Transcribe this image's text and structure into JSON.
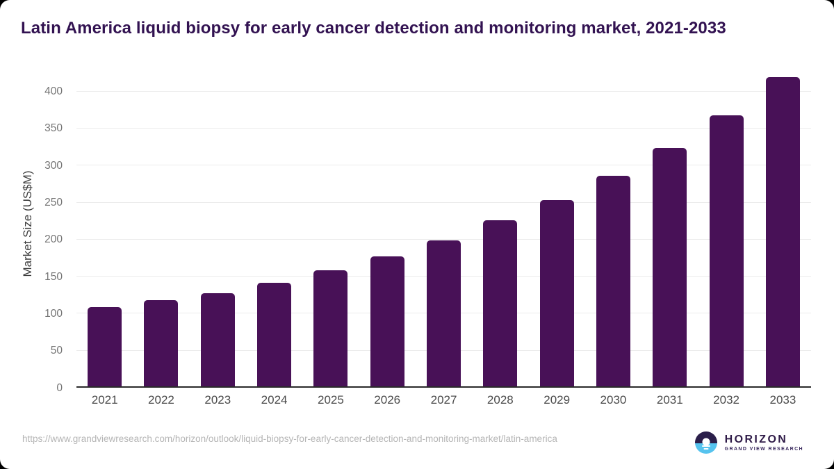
{
  "header": {
    "title": "Latin America liquid biopsy for early cancer detection and monitoring market, 2021-2033"
  },
  "chart_data": {
    "type": "bar",
    "title": "Latin America liquid biopsy for early cancer detection and monitoring market, 2021-2033",
    "categories": [
      "2021",
      "2022",
      "2023",
      "2024",
      "2025",
      "2026",
      "2027",
      "2028",
      "2029",
      "2030",
      "2031",
      "2032",
      "2033"
    ],
    "values": [
      109,
      118,
      128,
      142,
      159,
      177,
      199,
      226,
      253,
      286,
      324,
      368,
      419
    ],
    "xlabel": "",
    "ylabel": "Market Size (US$M)",
    "unit": "US$M",
    "ylim": [
      0,
      425
    ],
    "yticks": [
      0,
      50,
      100,
      150,
      200,
      250,
      300,
      350,
      400
    ],
    "grid": "horizontal",
    "legend": "none",
    "bar_color": "#481157"
  },
  "footer": {
    "source_url": "https://www.grandviewresearch.com/horizon/outlook/liquid-biopsy-for-early-cancer-detection-and-monitoring-market/latin-america",
    "logo": {
      "brand": "HORIZON",
      "subtitle": "GRAND VIEW RESEARCH",
      "mark_top_color": "#2b1e4a",
      "mark_bottom_color": "#56c3ee"
    }
  }
}
